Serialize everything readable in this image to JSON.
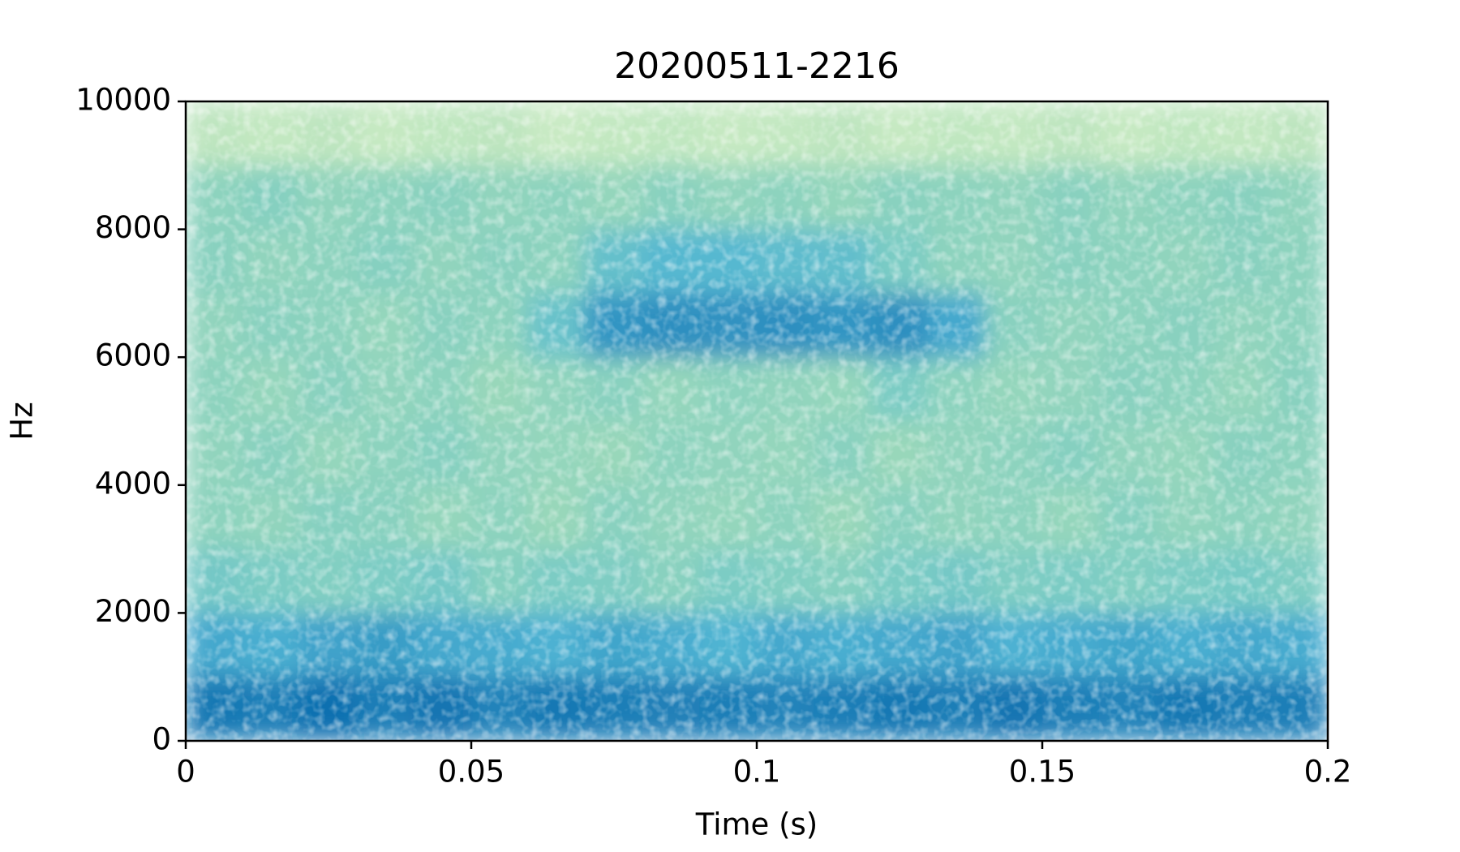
{
  "chart_data": {
    "type": "spectrogram",
    "title": "20200511-2216",
    "x_label": "Time (s)",
    "y_label": "Hz",
    "xlim": [
      0,
      0.2
    ],
    "ylim": [
      0,
      10000
    ],
    "xticks": [
      0,
      0.05,
      0.1,
      0.15,
      0.2
    ],
    "yticks": [
      0,
      2000,
      4000,
      6000,
      8000,
      10000
    ],
    "colormap": [
      "#f7fcf0",
      "#e0f3db",
      "#ccebc5",
      "#a8ddb5",
      "#7bccc4",
      "#4eb3d3",
      "#2b8cbe",
      "#0868ac",
      "#084081"
    ],
    "z": [
      [
        0.82,
        0.8,
        0.85,
        0.8,
        0.83,
        0.78,
        0.82,
        0.8,
        0.79,
        0.8,
        0.78,
        0.8,
        0.82,
        0.8,
        0.83,
        0.8,
        0.78,
        0.82,
        0.8,
        0.8
      ],
      [
        0.66,
        0.64,
        0.68,
        0.7,
        0.66,
        0.65,
        0.63,
        0.67,
        0.65,
        0.62,
        0.66,
        0.64,
        0.66,
        0.68,
        0.63,
        0.65,
        0.67,
        0.64,
        0.66,
        0.65
      ],
      [
        0.52,
        0.5,
        0.48,
        0.5,
        0.52,
        0.47,
        0.5,
        0.49,
        0.46,
        0.5,
        0.48,
        0.47,
        0.5,
        0.52,
        0.49,
        0.5,
        0.48,
        0.5,
        0.51,
        0.49
      ],
      [
        0.45,
        0.44,
        0.47,
        0.46,
        0.43,
        0.45,
        0.42,
        0.46,
        0.44,
        0.43,
        0.45,
        0.42,
        0.46,
        0.44,
        0.45,
        0.43,
        0.47,
        0.44,
        0.45,
        0.44
      ],
      [
        0.44,
        0.46,
        0.43,
        0.45,
        0.47,
        0.44,
        0.43,
        0.42,
        0.45,
        0.44,
        0.43,
        0.46,
        0.42,
        0.44,
        0.45,
        0.47,
        0.44,
        0.43,
        0.46,
        0.45
      ],
      [
        0.45,
        0.43,
        0.46,
        0.44,
        0.45,
        0.42,
        0.44,
        0.46,
        0.43,
        0.45,
        0.44,
        0.43,
        0.5,
        0.45,
        0.43,
        0.44,
        0.46,
        0.45,
        0.43,
        0.46
      ],
      [
        0.44,
        0.46,
        0.45,
        0.43,
        0.46,
        0.45,
        0.55,
        0.72,
        0.74,
        0.73,
        0.74,
        0.72,
        0.74,
        0.66,
        0.46,
        0.44,
        0.45,
        0.46,
        0.44,
        0.45
      ],
      [
        0.46,
        0.44,
        0.45,
        0.47,
        0.44,
        0.46,
        0.45,
        0.56,
        0.6,
        0.6,
        0.58,
        0.57,
        0.5,
        0.45,
        0.44,
        0.46,
        0.45,
        0.44,
        0.46,
        0.45
      ],
      [
        0.45,
        0.47,
        0.44,
        0.45,
        0.46,
        0.44,
        0.45,
        0.43,
        0.46,
        0.44,
        0.45,
        0.43,
        0.46,
        0.45,
        0.44,
        0.46,
        0.44,
        0.45,
        0.46,
        0.44
      ],
      [
        0.3,
        0.28,
        0.3,
        0.27,
        0.29,
        0.3,
        0.26,
        0.28,
        0.29,
        0.27,
        0.28,
        0.3,
        0.27,
        0.29,
        0.28,
        0.3,
        0.27,
        0.29,
        0.28,
        0.3
      ]
    ]
  }
}
